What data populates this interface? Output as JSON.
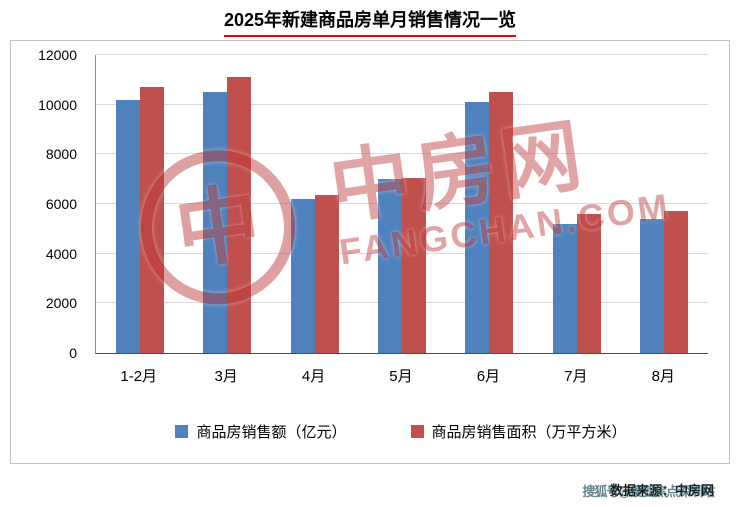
{
  "title": "2025年新建商品房单月销售情况一览",
  "watermark": {
    "brand": "中房网",
    "domain": "FANGCHAN.COM",
    "logo_glyph": "中",
    "color": "#be3e3e"
  },
  "source": {
    "label": "数据来源：中房网",
    "watermark_overlay": "搜狐号@搜狐焦点深圳站"
  },
  "chart_data": {
    "type": "bar",
    "title": "2025年新建商品房单月销售情况一览",
    "categories": [
      "1-2月",
      "3月",
      "4月",
      "5月",
      "6月",
      "7月",
      "8月"
    ],
    "series": [
      {
        "name": "商品房销售额（亿元）",
        "color": "#4f81bd",
        "values": [
          10200,
          10500,
          6200,
          7000,
          10100,
          5200,
          5400
        ]
      },
      {
        "name": "商品房销售面积（万平方米）",
        "color": "#c0504d",
        "values": [
          10700,
          11100,
          6350,
          7050,
          10500,
          5600,
          5700
        ]
      }
    ],
    "xlabel": "",
    "ylabel": "",
    "ylim": [
      0,
      12000
    ],
    "ytick_step": 2000,
    "grid": true,
    "legend_position": "bottom"
  }
}
